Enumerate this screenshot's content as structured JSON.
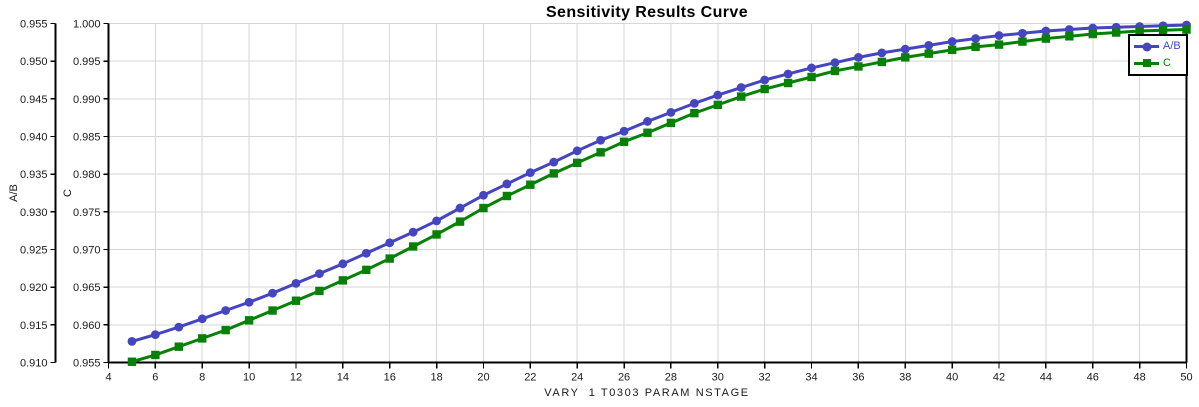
{
  "chart_data": {
    "type": "line",
    "title": "Sensitivity Results Curve",
    "xlabel": "VARY  1 T0303 PARAM NSTAGE",
    "grid": true,
    "legend": {
      "position": "top-right",
      "entries": [
        "A/B",
        "C"
      ]
    },
    "colors": {
      "background": "#FFFFFF",
      "grid": "#D6D6D6",
      "axis": "#000000",
      "tick_text": "#1A1A1A"
    },
    "x_axis": {
      "min": 4,
      "max": 50,
      "tick_step": 2,
      "tick_labels": [
        "4",
        "6",
        "8",
        "10",
        "12",
        "14",
        "16",
        "18",
        "20",
        "22",
        "24",
        "26",
        "28",
        "30",
        "32",
        "34",
        "36",
        "38",
        "40",
        "42",
        "44",
        "46",
        "48",
        "50"
      ]
    },
    "y_axes": [
      {
        "id": "left-outer",
        "label": "A/B",
        "min": 0.91,
        "max": 0.955,
        "tick_step": 0.005,
        "tick_labels_top_to_bottom": [
          "0.955",
          "0.950",
          "0.945",
          "0.940",
          "0.935",
          "0.930",
          "0.925",
          "0.920",
          "0.915",
          "0.910"
        ]
      },
      {
        "id": "left-inner",
        "label": "C",
        "min": 0.955,
        "max": 1.0,
        "tick_step": 0.005,
        "tick_labels_top_to_bottom": [
          "1.000",
          "0.995",
          "0.990",
          "0.985",
          "0.980",
          "0.975",
          "0.970",
          "0.965",
          "0.960",
          "0.955"
        ]
      }
    ],
    "x": [
      5,
      6,
      7,
      8,
      9,
      10,
      11,
      12,
      13,
      14,
      15,
      16,
      17,
      18,
      19,
      20,
      21,
      22,
      23,
      24,
      25,
      26,
      27,
      28,
      29,
      30,
      31,
      32,
      33,
      34,
      35,
      36,
      37,
      38,
      39,
      40,
      41,
      42,
      43,
      44,
      45,
      46,
      47,
      48,
      49,
      50
    ],
    "series": [
      {
        "name": "A/B",
        "color": "#4545C0",
        "marker": "circle",
        "y_axis": "left-outer",
        "values": [
          0.9128,
          0.9137,
          0.9147,
          0.9158,
          0.9169,
          0.918,
          0.9192,
          0.9205,
          0.9218,
          0.9231,
          0.9245,
          0.9259,
          0.9273,
          0.9288,
          0.9305,
          0.9322,
          0.9337,
          0.9352,
          0.9366,
          0.9381,
          0.9395,
          0.9407,
          0.942,
          0.9432,
          0.9444,
          0.9455,
          0.9465,
          0.9475,
          0.9483,
          0.9491,
          0.9498,
          0.9505,
          0.9511,
          0.9516,
          0.9521,
          0.9526,
          0.953,
          0.9534,
          0.9537,
          0.954,
          0.9542,
          0.9544,
          0.9545,
          0.9546,
          0.9547,
          0.9548
        ],
        "values_axis_note": "plotted against A/B axis 0.910-0.955"
      },
      {
        "name": "C",
        "color": "#068006",
        "marker": "square",
        "y_axis": "left-inner",
        "values": [
          0.9551,
          0.956,
          0.9571,
          0.9582,
          0.9593,
          0.9606,
          0.9619,
          0.9632,
          0.9645,
          0.9659,
          0.9673,
          0.9688,
          0.9704,
          0.972,
          0.9737,
          0.9755,
          0.9771,
          0.9786,
          0.9801,
          0.9815,
          0.9829,
          0.9843,
          0.9855,
          0.9868,
          0.9881,
          0.9892,
          0.9903,
          0.9913,
          0.9921,
          0.9929,
          0.9937,
          0.9943,
          0.9949,
          0.9955,
          0.996,
          0.9965,
          0.9969,
          0.9972,
          0.9976,
          0.998,
          0.9983,
          0.9986,
          0.9988,
          0.999,
          0.9991,
          0.9992
        ],
        "values_axis_note": "plotted against C axis 0.955-1.000"
      }
    ]
  }
}
